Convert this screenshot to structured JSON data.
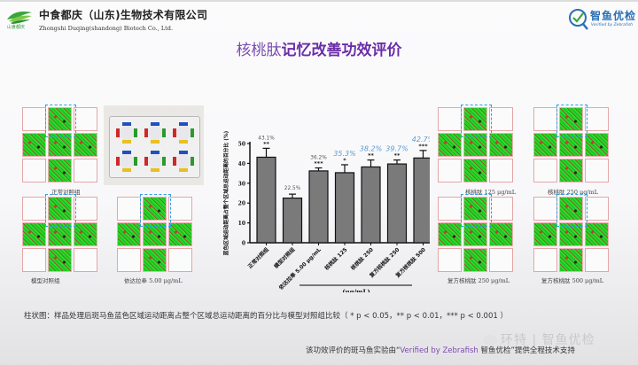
{
  "header": {
    "company_name_cn": "中食都庆（山东)生物技术有限公司",
    "company_name_en": "Zhongshi Duqing(shandong) Biotech Co., Ltd.",
    "company_logo_tag": "山食都庆",
    "partner_logo_cn": "智鱼优检",
    "partner_logo_en": "Verified by Zebrafish"
  },
  "title": {
    "light": "核桃肽",
    "bold": "记忆改善功效评价"
  },
  "groups": [
    {
      "label": "正常对照组"
    },
    {
      "label": "模型对照组"
    },
    {
      "label": "依达拉奉 5.00 μg/mL"
    },
    {
      "label": "核桃肽 125 μg/mL"
    },
    {
      "label": "核桃肽 250 μg/mL"
    },
    {
      "label": "复方核桃肽 250 μg/mL"
    },
    {
      "label": "复方核桃肽 500 μg/mL"
    }
  ],
  "caption": "柱状图：样品处理后斑马鱼蓝色区域运动距离占整个区域总运动距离的百分比与模型对照组比较（ * p < 0.05，** p < 0.01，*** p < 0.001 ）",
  "footer": {
    "prefix": "该功效评价的斑马鱼实验由“",
    "highlight": "Verified by Zebrafish",
    "suffix": " 智鱼优检”提供全程技术支持"
  },
  "watermark": "环特 | 智鱼优检",
  "colors": {
    "title_purple": "#6a2ea8",
    "bar_fill": "#7a7a7a",
    "highlight_blue": "#5b9bd5",
    "track_green": "#2bd12b",
    "dash_blue": "#2a9fe0"
  },
  "chart_data": {
    "type": "bar",
    "title": "",
    "ylabel": "蓝色区域运动距离占整个区域总运动距离的百分比 (%)",
    "xlabel": "(μg/mL)",
    "ylim": [
      0,
      50
    ],
    "yticks": [
      0,
      10,
      20,
      30,
      40,
      50
    ],
    "categories": [
      "正常对照组",
      "模型对照组",
      "依达拉奉 5.00 μg/mL",
      "核桃肽 125",
      "核桃肽 250",
      "复方核桃肽 250",
      "复方核桃肽 500"
    ],
    "values": [
      43.1,
      22.5,
      36.2,
      35.3,
      38.2,
      39.7,
      42.7
    ],
    "errors": [
      4.5,
      2.0,
      1.5,
      4.0,
      3.5,
      2.0,
      3.8
    ],
    "value_labels": [
      "43.1%",
      "22.5%",
      "36.2%",
      "35.3%",
      "38.2%",
      "39.7%",
      "42.7%"
    ],
    "significance": [
      "**",
      "",
      "***",
      "*",
      "**",
      "**",
      "***"
    ],
    "label_highlighted": [
      false,
      false,
      false,
      true,
      true,
      true,
      true
    ],
    "grid": false,
    "legend": null
  }
}
